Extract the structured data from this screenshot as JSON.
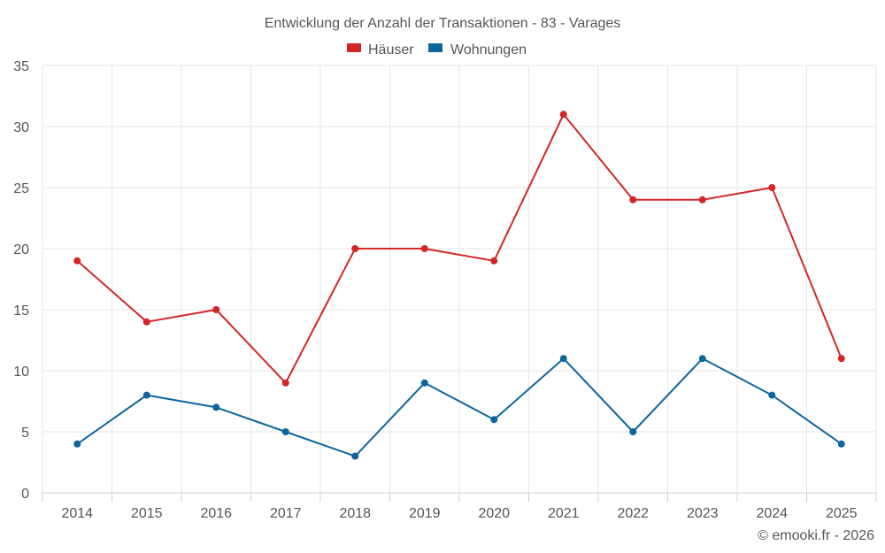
{
  "chart_data": {
    "type": "line",
    "title": "Entwicklung der Anzahl der Transaktionen - 83 - Varages",
    "categories": [
      "2014",
      "2015",
      "2016",
      "2017",
      "2018",
      "2019",
      "2020",
      "2021",
      "2022",
      "2023",
      "2024",
      "2025"
    ],
    "series": [
      {
        "name": "Häuser",
        "color": "#d32627",
        "values": [
          19,
          14,
          15,
          9,
          20,
          20,
          19,
          31,
          24,
          24,
          25,
          11
        ]
      },
      {
        "name": "Wohnungen",
        "color": "#0e659c",
        "values": [
          4,
          8,
          7,
          5,
          3,
          9,
          6,
          11,
          5,
          11,
          8,
          4
        ]
      }
    ],
    "ylim": [
      0,
      35
    ],
    "yticks": [
      "0",
      "5",
      "10",
      "15",
      "20",
      "25",
      "30",
      "35"
    ],
    "xlabel": "",
    "ylabel": "",
    "grid": true,
    "legend_position": "top-center"
  },
  "credit": "© emooki.fr - 2026"
}
